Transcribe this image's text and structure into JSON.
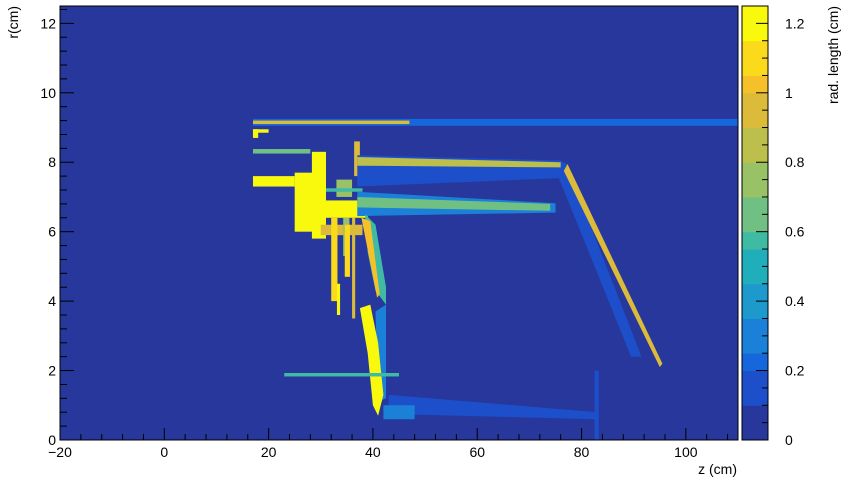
{
  "chart_data": {
    "type": "heatmap",
    "title": "",
    "xlabel": "z (cm)",
    "ylabel": "r(cm)",
    "zlabel": "rad. length (cm)",
    "xlim": [
      -20,
      110
    ],
    "ylim": [
      0,
      12.5
    ],
    "zlim": [
      0,
      1.25
    ],
    "x_ticks": [
      -20,
      0,
      20,
      40,
      60,
      80,
      100
    ],
    "y_ticks": [
      0,
      2,
      4,
      6,
      8,
      10,
      12
    ],
    "z_ticks": [
      0,
      0.2,
      0.4,
      0.6,
      0.8,
      1,
      1.2
    ],
    "x_tick_labels": [
      "−20",
      "0",
      "20",
      "40",
      "60",
      "80",
      "100"
    ],
    "y_tick_labels": [
      "0",
      "2",
      "4",
      "6",
      "8",
      "10",
      "12"
    ],
    "z_tick_labels": [
      "0",
      "0.2",
      "0.4",
      "0.6",
      "0.8",
      "1",
      "1.2"
    ],
    "background_value": 0.0,
    "palette": [
      "#27379b",
      "#1d4fcb",
      "#1666dc",
      "#1b80d7",
      "#1d99cc",
      "#21aebb",
      "#40bba3",
      "#70c084",
      "#99c266",
      "#bcbf4c",
      "#dcbb3b",
      "#f6c02b",
      "#fbd91b",
      "#f9f90e"
    ],
    "regions": [
      {
        "kind": "rect",
        "z": [
          17,
          47
        ],
        "r": [
          9.3,
          12.5
        ],
        "value": 0.06
      },
      {
        "kind": "rect",
        "z": [
          17,
          110
        ],
        "r": [
          9.05,
          9.25
        ],
        "value": 0.25
      },
      {
        "kind": "rect",
        "z": [
          17,
          47
        ],
        "r": [
          9.1,
          9.2
        ],
        "value": 0.9
      },
      {
        "kind": "rect",
        "z": [
          17,
          20
        ],
        "r": [
          8.85,
          8.95
        ],
        "value": 1.25
      },
      {
        "kind": "rect",
        "z": [
          17,
          18
        ],
        "r": [
          8.7,
          8.95
        ],
        "value": 1.25
      },
      {
        "kind": "rect",
        "z": [
          17,
          28
        ],
        "r": [
          8.25,
          8.38
        ],
        "value": 0.7
      },
      {
        "kind": "rect",
        "z": [
          17,
          25
        ],
        "r": [
          7.3,
          7.6
        ],
        "value": 1.25
      },
      {
        "kind": "rect",
        "z": [
          25,
          29
        ],
        "r": [
          6.0,
          7.7
        ],
        "value": 1.25
      },
      {
        "kind": "rect",
        "z": [
          28.3,
          31
        ],
        "r": [
          5.8,
          8.3
        ],
        "value": 1.25
      },
      {
        "kind": "rect",
        "z": [
          28,
          39
        ],
        "r": [
          6.4,
          6.9
        ],
        "value": 1.25
      },
      {
        "kind": "rect",
        "z": [
          30,
          38
        ],
        "r": [
          5.9,
          6.2
        ],
        "value": 0.95
      },
      {
        "kind": "rect",
        "z": [
          33,
          36
        ],
        "r": [
          7.0,
          7.5
        ],
        "value": 0.8
      },
      {
        "kind": "rect",
        "z": [
          31,
          38
        ],
        "r": [
          7.15,
          7.25
        ],
        "value": 0.55
      },
      {
        "kind": "rect",
        "z": [
          32,
          33.2
        ],
        "r": [
          4.0,
          6.4
        ],
        "value": 1.1
      },
      {
        "kind": "rect",
        "z": [
          33.1,
          33.7
        ],
        "r": [
          3.6,
          4.5
        ],
        "value": 1.25
      },
      {
        "kind": "rect",
        "z": [
          34.3,
          35.5
        ],
        "r": [
          5.3,
          6.4
        ],
        "value": 0.8
      },
      {
        "kind": "rect",
        "z": [
          36,
          36.6
        ],
        "r": [
          3.5,
          6.4
        ],
        "value": 0.9
      },
      {
        "kind": "rect",
        "z": [
          34.6,
          35.6
        ],
        "r": [
          4.7,
          6.2
        ],
        "value": 1.1
      },
      {
        "kind": "rect",
        "z": [
          36.4,
          37.5
        ],
        "r": [
          7.6,
          8.6
        ],
        "value": 0.9
      },
      {
        "kind": "poly",
        "points": [
          [
            37,
            8.2
          ],
          [
            76,
            8.05
          ],
          [
            77.5,
            7.9
          ],
          [
            77,
            7.55
          ],
          [
            37,
            7.3
          ]
        ],
        "value": 0.15
      },
      {
        "kind": "poly",
        "points": [
          [
            37,
            8.15
          ],
          [
            76,
            8.0
          ],
          [
            76,
            7.85
          ],
          [
            37,
            7.9
          ]
        ],
        "value": 0.85
      },
      {
        "kind": "poly",
        "points": [
          [
            37,
            7.15
          ],
          [
            75,
            6.82
          ],
          [
            75,
            6.55
          ],
          [
            37,
            6.45
          ]
        ],
        "value": 0.3
      },
      {
        "kind": "poly",
        "points": [
          [
            37,
            7.0
          ],
          [
            74,
            6.8
          ],
          [
            74,
            6.6
          ],
          [
            37,
            6.7
          ]
        ],
        "value": 0.7
      },
      {
        "kind": "poly",
        "points": [
          [
            77,
            8.0
          ],
          [
            91.5,
            2.4
          ],
          [
            89.5,
            2.4
          ],
          [
            75.5,
            7.6
          ]
        ],
        "value": 0.15
      },
      {
        "kind": "poly",
        "points": [
          [
            77.3,
            7.95
          ],
          [
            95.5,
            2.2
          ],
          [
            95,
            2.1
          ],
          [
            76.6,
            7.75
          ]
        ],
        "value": 0.9
      },
      {
        "kind": "poly",
        "points": [
          [
            38.5,
            6.5
          ],
          [
            40.5,
            6.2
          ],
          [
            42.5,
            4.4
          ],
          [
            42.5,
            3.9
          ],
          [
            40.5,
            4.3
          ],
          [
            39,
            5.4
          ]
        ],
        "value": 0.6
      },
      {
        "kind": "poly",
        "points": [
          [
            37.8,
            6.4
          ],
          [
            39.5,
            6.3
          ],
          [
            41.3,
            4.2
          ],
          [
            40.8,
            4.1
          ]
        ],
        "value": 1.0
      },
      {
        "kind": "poly",
        "points": [
          [
            40.5,
            3.7
          ],
          [
            42.5,
            3.9
          ],
          [
            42.5,
            1.2
          ],
          [
            41,
            1.1
          ]
        ],
        "value": 0.35
      },
      {
        "kind": "poly",
        "points": [
          [
            43,
            4.7
          ],
          [
            77,
            4.7
          ],
          [
            78,
            4.3
          ],
          [
            78,
            2.8
          ],
          [
            43,
            2.8
          ]
        ],
        "value": 0.08
      },
      {
        "kind": "poly",
        "points": [
          [
            43,
            1.3
          ],
          [
            83,
            0.8
          ],
          [
            83,
            0.6
          ],
          [
            43,
            0.75
          ]
        ],
        "value": 0.1
      },
      {
        "kind": "poly",
        "points": [
          [
            42,
            1.0
          ],
          [
            48,
            1.0
          ],
          [
            48,
            0.6
          ],
          [
            42,
            0.6
          ]
        ],
        "value": 0.35
      },
      {
        "kind": "poly",
        "points": [
          [
            37.5,
            3.8
          ],
          [
            39.5,
            3.9
          ],
          [
            41,
            2.8
          ],
          [
            42,
            1.3
          ],
          [
            41,
            0.7
          ],
          [
            40,
            1.0
          ],
          [
            39,
            2.5
          ]
        ],
        "value": 1.25
      },
      {
        "kind": "rect",
        "z": [
          23,
          45
        ],
        "r": [
          1.83,
          1.93
        ],
        "value": 0.55
      },
      {
        "kind": "rect",
        "z": [
          82.5,
          83.3
        ],
        "r": [
          0,
          2.0
        ],
        "value": 0.1
      }
    ]
  }
}
